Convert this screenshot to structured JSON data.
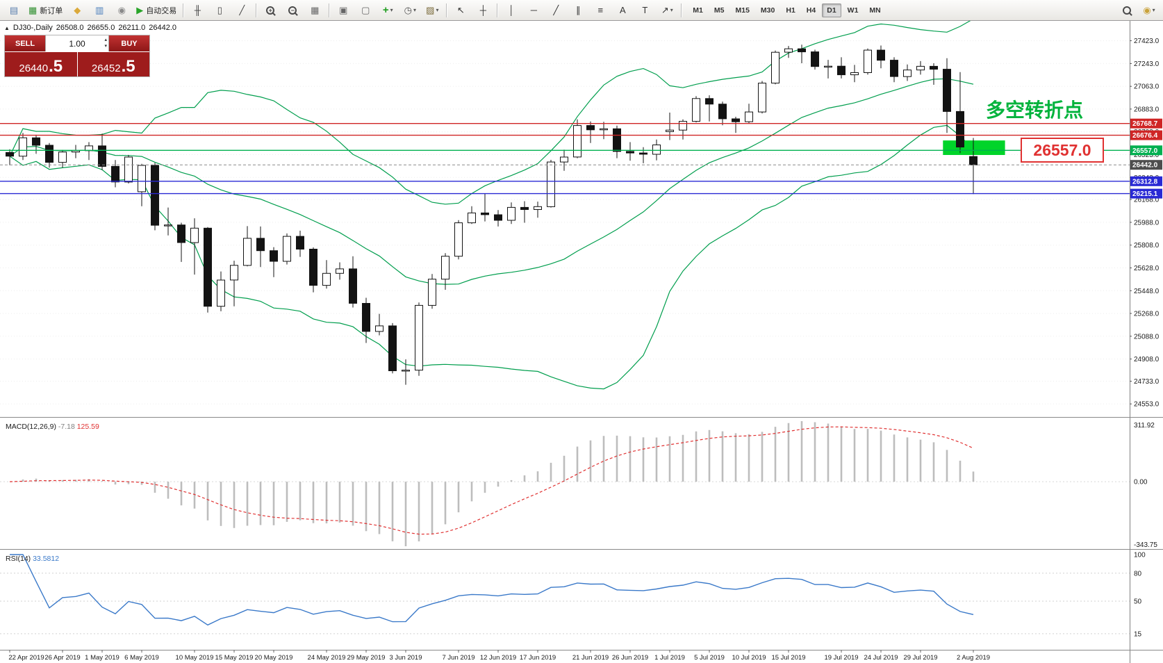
{
  "toolbar": {
    "dropdown_glyph": "▾",
    "items": [
      {
        "name": "chart-shortcut-icon",
        "glyph": "▤",
        "color": "#5a7fae"
      },
      {
        "name": "new-order-button",
        "glyph": "▦",
        "color": "#2f8f2f",
        "label": "新订单"
      },
      {
        "name": "mql5-community-icon",
        "glyph": "◆",
        "color": "#dba93a"
      },
      {
        "name": "charts-community-icon",
        "glyph": "▥",
        "color": "#4a7ebb"
      },
      {
        "name": "metaquotes-icon",
        "glyph": "◉",
        "color": "#8a8a8a"
      },
      {
        "name": "auto-trading-button",
        "glyph": "▶",
        "color": "#28a428",
        "label": "自动交易"
      },
      {
        "type": "separator"
      },
      {
        "name": "bar-chart-type-button",
        "glyph": "╫",
        "color": "#444444"
      },
      {
        "name": "candlestick-chart-type-button",
        "glyph": "▯",
        "color": "#444444"
      },
      {
        "name": "line-chart-type-button",
        "glyph": "╱",
        "color": "#444444"
      },
      {
        "type": "separator"
      },
      {
        "name": "zoom-in-button",
        "icon": "magnifier",
        "sign": "+"
      },
      {
        "name": "zoom-out-button",
        "icon": "magnifier",
        "sign": "−"
      },
      {
        "name": "grid-button",
        "glyph": "▦",
        "color": "#666666"
      },
      {
        "type": "separator"
      },
      {
        "name": "tile-windows-button",
        "glyph": "▣",
        "color": "#666666"
      },
      {
        "name": "cascade-windows-button",
        "glyph": "▢",
        "color": "#666666"
      },
      {
        "name": "indicators-button",
        "glyph": "+",
        "color": "#1f9d1f",
        "dropdown": true
      },
      {
        "name": "periods-button",
        "glyph": "◷",
        "color": "#555555",
        "dropdown": true
      },
      {
        "name": "templates-button",
        "glyph": "▨",
        "color": "#7a6a3a",
        "dropdown": true
      },
      {
        "type": "separator"
      },
      {
        "name": "cursor-button",
        "glyph": "↖",
        "color": "#333333"
      },
      {
        "name": "crosshair-button",
        "glyph": "┼",
        "color": "#333333"
      },
      {
        "type": "separator"
      },
      {
        "name": "vertical-line-button",
        "glyph": "│",
        "color": "#333333"
      },
      {
        "name": "horizontal-line-button",
        "glyph": "─",
        "color": "#333333"
      },
      {
        "name": "trendline-button",
        "glyph": "╱",
        "color": "#333333"
      },
      {
        "name": "channel-button",
        "glyph": "∥",
        "color": "#333333"
      },
      {
        "name": "fibonacci-button",
        "glyph": "≡",
        "color": "#333333"
      },
      {
        "name": "text-button",
        "glyph": "A",
        "color": "#333333"
      },
      {
        "name": "label-button",
        "glyph": "T",
        "color": "#333333"
      },
      {
        "name": "arrow-tools-button",
        "glyph": "↗",
        "color": "#333333",
        "dropdown": true
      },
      {
        "type": "separator"
      },
      {
        "type": "timeframes"
      },
      {
        "type": "spacer"
      },
      {
        "name": "search-button",
        "icon": "magnifier",
        "sign": ""
      },
      {
        "name": "community-button",
        "glyph": "◉",
        "color": "#c9a23a",
        "dropdown": true
      }
    ],
    "timeframes": [
      "M1",
      "M5",
      "M15",
      "M30",
      "H1",
      "H4",
      "D1",
      "W1",
      "MN"
    ],
    "active_timeframe": "D1"
  },
  "info_bar": {
    "collapse_icon": "▲",
    "symbol": "DJ30-,Daily",
    "open": "26508.0",
    "high": "26655.0",
    "low": "26211.0",
    "close": "26442.0"
  },
  "trade_panel": {
    "sell_label": "SELL",
    "buy_label": "BUY",
    "volume": "1.00",
    "spinner_up": "▴",
    "spinner_down": "▾",
    "sell_price": "26440",
    "sell_price_frac": ".5",
    "buy_price": "26452",
    "buy_price_frac": ".5"
  },
  "annotation": {
    "text": "多空转折点",
    "color": "#00b33c"
  },
  "callout": {
    "text": "26557.0",
    "color": "#e03131"
  },
  "levels": [
    {
      "value": 26768.7,
      "label": "26768.7",
      "color": "#cf2525",
      "type": "line"
    },
    {
      "value": 26676.4,
      "label": "26676.4",
      "color": "#cf2525",
      "type": "line"
    },
    {
      "value": 26557.0,
      "label": "26557.0",
      "color": "#00b050",
      "type": "line"
    },
    {
      "value": 26442.0,
      "label": "26442.0",
      "color": "#4d4d4d",
      "type": "price"
    },
    {
      "value": 26312.8,
      "label": "26312.8",
      "color": "#2929d4",
      "type": "line"
    },
    {
      "value": 26215.1,
      "label": "26215.1",
      "color": "#2929d4",
      "type": "line"
    }
  ],
  "highlight_box": {
    "color": "#00d42a",
    "price_top": 26635,
    "price_bottom": 26520,
    "from_candle": 70.7,
    "to_candle": 75.4
  },
  "chart_data": {
    "type": "candlestick",
    "symbol": "DJ30-",
    "period": "Daily",
    "y_axis_labels": [
      27423.0,
      27243.0,
      27063.0,
      26883.0,
      26703.0,
      26523.0,
      26343.0,
      26168.0,
      25988.0,
      25808.0,
      25628.0,
      25448.0,
      25268.0,
      25088.0,
      24908.0,
      24733.0,
      24553.0
    ],
    "x_axis_labels": [
      {
        "label": "22 Apr 2019",
        "i": 0
      },
      {
        "label": "26 Apr 2019",
        "i": 4
      },
      {
        "label": "1 May 2019",
        "i": 7
      },
      {
        "label": "6 May 2019",
        "i": 10
      },
      {
        "label": "10 May 2019",
        "i": 14
      },
      {
        "label": "15 May 2019",
        "i": 17
      },
      {
        "label": "20 May 2019",
        "i": 20
      },
      {
        "label": "24 May 2019",
        "i": 24
      },
      {
        "label": "29 May 2019",
        "i": 27
      },
      {
        "label": "3 Jun 2019",
        "i": 30
      },
      {
        "label": "7 Jun 2019",
        "i": 34
      },
      {
        "label": "12 Jun 2019",
        "i": 37
      },
      {
        "label": "17 Jun 2019",
        "i": 40
      },
      {
        "label": "21 Jun 2019",
        "i": 44
      },
      {
        "label": "26 Jun 2019",
        "i": 47
      },
      {
        "label": "1 Jul 2019",
        "i": 50
      },
      {
        "label": "5 Jul 2019",
        "i": 53
      },
      {
        "label": "10 Jul 2019",
        "i": 56
      },
      {
        "label": "15 Jul 2019",
        "i": 59
      },
      {
        "label": "19 Jul 2019",
        "i": 63
      },
      {
        "label": "24 Jul 2019",
        "i": 66
      },
      {
        "label": "29 Jul 2019",
        "i": 69
      },
      {
        "label": "2 Aug 2019",
        "i": 73
      }
    ],
    "ohlc": [
      [
        26540,
        26565,
        26440,
        26511
      ],
      [
        26511,
        26695,
        26480,
        26656
      ],
      [
        26656,
        26680,
        26530,
        26597
      ],
      [
        26597,
        26615,
        26420,
        26462
      ],
      [
        26462,
        26560,
        26420,
        26543
      ],
      [
        26543,
        26600,
        26495,
        26554
      ],
      [
        26554,
        26622,
        26480,
        26592
      ],
      [
        26592,
        26689,
        26400,
        26430
      ],
      [
        26430,
        26480,
        26265,
        26307
      ],
      [
        26307,
        26520,
        26295,
        26504
      ],
      [
        26230,
        26450,
        26115,
        26438
      ],
      [
        26438,
        26458,
        25925,
        25965
      ],
      [
        25965,
        26105,
        25885,
        25967
      ],
      [
        25967,
        25985,
        25675,
        25828
      ],
      [
        25828,
        26020,
        25575,
        25942
      ],
      [
        25942,
        25950,
        25275,
        25325
      ],
      [
        25325,
        25600,
        25285,
        25532
      ],
      [
        25532,
        25685,
        25325,
        25648
      ],
      [
        25648,
        25958,
        25640,
        25862
      ],
      [
        25862,
        25955,
        25635,
        25764
      ],
      [
        25764,
        25792,
        25555,
        25680
      ],
      [
        25680,
        25900,
        25655,
        25877
      ],
      [
        25877,
        25922,
        25715,
        25776
      ],
      [
        25776,
        25790,
        25435,
        25490
      ],
      [
        25490,
        25690,
        25465,
        25585
      ],
      [
        25585,
        25672,
        25535,
        25620
      ],
      [
        25620,
        25720,
        25315,
        25348
      ],
      [
        25348,
        25392,
        25035,
        25126
      ],
      [
        25126,
        25265,
        25095,
        25170
      ],
      [
        25170,
        25192,
        24795,
        24815
      ],
      [
        24815,
        24905,
        24705,
        24820
      ],
      [
        24820,
        25355,
        24775,
        25332
      ],
      [
        25332,
        25580,
        25305,
        25539
      ],
      [
        25539,
        25745,
        25455,
        25720
      ],
      [
        25720,
        26005,
        25695,
        25984
      ],
      [
        25984,
        26115,
        25975,
        26062
      ],
      [
        26062,
        26215,
        25995,
        26048
      ],
      [
        26048,
        26085,
        25955,
        26004
      ],
      [
        26004,
        26145,
        25975,
        26106
      ],
      [
        26106,
        26155,
        25985,
        26089
      ],
      [
        26089,
        26152,
        26025,
        26112
      ],
      [
        26112,
        26482,
        26105,
        26465
      ],
      [
        26465,
        26562,
        26395,
        26504
      ],
      [
        26504,
        26802,
        26495,
        26753
      ],
      [
        26753,
        26785,
        26615,
        26719
      ],
      [
        26719,
        26782,
        26645,
        26727
      ],
      [
        26727,
        26752,
        26495,
        26548
      ],
      [
        26548,
        26622,
        26475,
        26536
      ],
      [
        26536,
        26582,
        26455,
        26526
      ],
      [
        26526,
        26642,
        26478,
        26600
      ],
      [
        26705,
        26855,
        26638,
        26717
      ],
      [
        26717,
        26802,
        26642,
        26786
      ],
      [
        26786,
        26985,
        26778,
        26966
      ],
      [
        26966,
        26992,
        26785,
        26922
      ],
      [
        26922,
        26942,
        26755,
        26806
      ],
      [
        26806,
        26822,
        26695,
        26783
      ],
      [
        26783,
        26925,
        26768,
        26860
      ],
      [
        26860,
        27105,
        26848,
        27088
      ],
      [
        27088,
        27345,
        27078,
        27332
      ],
      [
        27332,
        27382,
        27288,
        27359
      ],
      [
        27359,
        27392,
        27245,
        27335
      ],
      [
        27335,
        27352,
        27195,
        27219
      ],
      [
        27219,
        27272,
        27125,
        27222
      ],
      [
        27222,
        27292,
        27125,
        27154
      ],
      [
        27154,
        27232,
        27095,
        27171
      ],
      [
        27171,
        27362,
        27155,
        27349
      ],
      [
        27349,
        27385,
        27205,
        27269
      ],
      [
        27269,
        27292,
        27095,
        27140
      ],
      [
        27140,
        27235,
        27105,
        27192
      ],
      [
        27192,
        27262,
        27155,
        27221
      ],
      [
        27221,
        27245,
        27075,
        27198
      ],
      [
        27198,
        27285,
        26695,
        26864
      ],
      [
        26864,
        27175,
        26535,
        26583
      ],
      [
        26508,
        26655,
        26211,
        26442
      ]
    ],
    "indicators": {
      "bollinger": {
        "period": 20,
        "deviation": 2,
        "color": "#009e4d"
      },
      "macd": {
        "label": "MACD(12,26,9)",
        "main_value": "-7.18",
        "signal_value": "125.59",
        "fast": 12,
        "slow": 26,
        "signal": 9,
        "scale_max": "311.92",
        "scale_zero": "0.00",
        "scale_min": "-343.75",
        "histogram_color": "#bdbdbd",
        "signal_color": "#e03131"
      },
      "rsi": {
        "label": "RSI(14)",
        "value": "33.5812",
        "period": 14,
        "scale": [
          100,
          80,
          50,
          15
        ],
        "line_color": "#3a79c9"
      }
    }
  }
}
